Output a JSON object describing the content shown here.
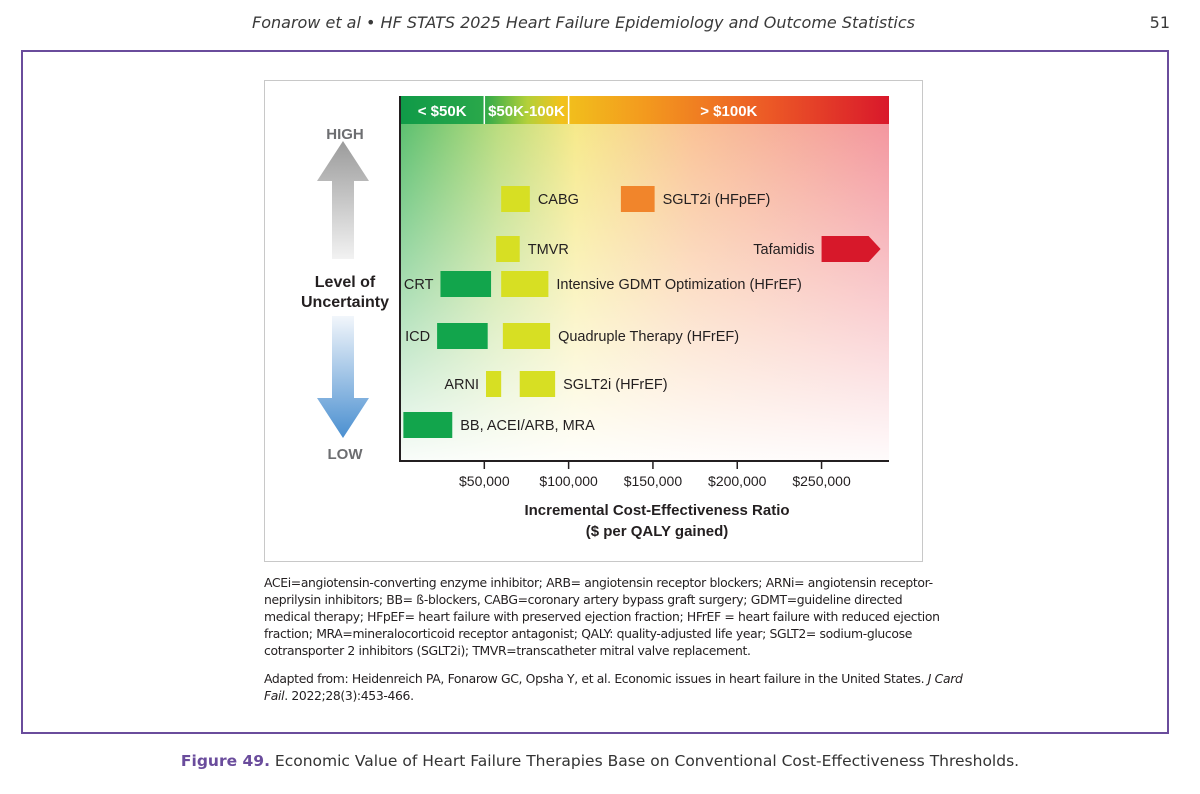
{
  "header": {
    "running_title": "Fonarow et al • HF STATS 2025 Heart Failure Epidemiology and Outcome Statistics",
    "page_number": "51"
  },
  "chart_data": {
    "type": "bar",
    "orientation": "horizontal-range",
    "xlabel_line1": "Incremental Cost-Effectiveness Ratio",
    "xlabel_line2": "($ per QALY gained)",
    "ylabel_line1": "Level of",
    "ylabel_line2": "Uncertainty",
    "y_high_label": "HIGH",
    "y_low_label": "LOW",
    "xlim": [
      0,
      290000
    ],
    "x_ticks": [
      {
        "value": 50000,
        "label": "$50,000"
      },
      {
        "value": 100000,
        "label": "$100,000"
      },
      {
        "value": 150000,
        "label": "$150,000"
      },
      {
        "value": 200000,
        "label": "$200,000"
      },
      {
        "value": 250000,
        "label": "$250,000"
      }
    ],
    "threshold_bands": [
      {
        "label": "< $50K",
        "from": 0,
        "to": 50000,
        "color": "#1aa14a"
      },
      {
        "label": "$50K-100K",
        "from": 50000,
        "to": 100000,
        "color": "#a7c93b"
      },
      {
        "label": "> $100K",
        "from": 100000,
        "to": 290000,
        "color": "#e8402e"
      }
    ],
    "therapies": [
      {
        "name": "CABG",
        "low": 60000,
        "high": 77000,
        "level": 1,
        "color": "#d7df23",
        "label_side": "right"
      },
      {
        "name": "SGLT2i (HFpEF)",
        "low": 131000,
        "high": 151000,
        "level": 1,
        "color": "#f1852b",
        "label_side": "right"
      },
      {
        "name": "TMVR",
        "low": 57000,
        "high": 71000,
        "level": 2,
        "color": "#d7df23",
        "label_side": "right"
      },
      {
        "name": "Tafamidis",
        "low": 250000,
        "high": 285000,
        "level": 2,
        "color": "#d7182a",
        "label_side": "left",
        "open_ended": true
      },
      {
        "name": "CRT",
        "low": 24000,
        "high": 54000,
        "level": 3,
        "color": "#12a54c",
        "label_side": "left"
      },
      {
        "name": "Intensive GDMT Optimization (HFrEF)",
        "low": 60000,
        "high": 88000,
        "level": 3,
        "color": "#d7df23",
        "label_side": "right"
      },
      {
        "name": "ICD",
        "low": 22000,
        "high": 52000,
        "level": 4,
        "color": "#12a54c",
        "label_side": "left"
      },
      {
        "name": "Quadruple Therapy (HFrEF)",
        "low": 61000,
        "high": 89000,
        "level": 4,
        "color": "#d7df23",
        "label_side": "left_right"
      },
      {
        "name": "ARNI",
        "low": 51000,
        "high": 60000,
        "level": 5,
        "color": "#d7df23",
        "label_side": "left"
      },
      {
        "name": "SGLT2i (HFrEF)",
        "low": 71000,
        "high": 92000,
        "level": 5,
        "color": "#d7df23",
        "label_side": "right"
      },
      {
        "name": "BB, ACEI/ARB, MRA",
        "low": 2000,
        "high": 31000,
        "level": 6,
        "color": "#12a54c",
        "label_side": "right"
      }
    ]
  },
  "footnote": "ACEi=angiotensin-converting enzyme inhibitor; ARB= angiotensin receptor blockers; ARNi= angiotensin receptor-neprilysin inhibitors; BB= ß-blockers, CABG=coronary artery bypass graft surgery; GDMT=guideline directed medical therapy; HFpEF= heart failure with preserved ejection fraction; HFrEF = heart failure with reduced ejection fraction; MRA=mineralocorticoid receptor antagonist; QALY: quality-adjusted life year; SGLT2= sodium-glucose cotransporter 2 inhibitors (SGLT2i); TMVR=transcatheter mitral valve replacement.",
  "source": {
    "prefix": "Adapted from: Heidenreich PA, Fonarow GC, Opsha Y, et al. Economic issues in heart failure in the United States. ",
    "journal": "J Card Fail",
    "suffix": ". 2022;28(3):453-466."
  },
  "caption": {
    "label": "Figure 49.",
    "text": " Economic Value of Heart Failure Therapies Base on Conventional Cost-Effectiveness Thresholds."
  }
}
